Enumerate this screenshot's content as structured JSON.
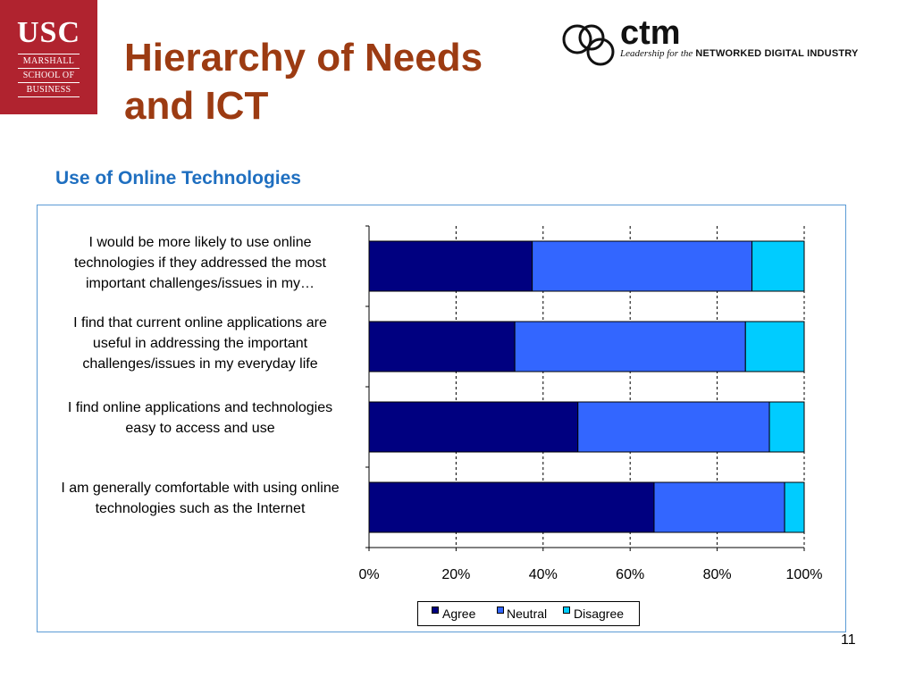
{
  "slide": {
    "title_line1": "Hierarchy of Needs",
    "title_line2": "and ICT",
    "subtitle": "Use of Online Technologies",
    "page_number": "11"
  },
  "usc_logo": {
    "big": "USC",
    "line1": "MARSHALL",
    "line2": "SCHOOL OF",
    "line3": "BUSINESS"
  },
  "ctm_logo": {
    "word": "ctm",
    "tag_lead": "Leadership for the",
    "tag_net": "NETWORKED DIGITAL INDUSTRY"
  },
  "colors": {
    "agree": "#000080",
    "neutral": "#3366ff",
    "disagree": "#00ccff",
    "title": "#9c3b12",
    "subtitle": "#1f6fc0",
    "usc_red": "#b0232f"
  },
  "chart_data": {
    "type": "bar",
    "orientation": "horizontal",
    "stacked": true,
    "percent": true,
    "categories": [
      "I would be more likely to use online technologies if they addressed the most important challenges/issues in my…",
      "I find that current online applications are useful in addressing the important challenges/issues in my everyday life",
      "I find online applications and technologies easy to access and use",
      "I am generally comfortable with using online technologies such as the Internet"
    ],
    "category_lines": [
      [
        "I would be more likely to use online",
        "technologies if they addressed the most",
        "important challenges/issues in my…"
      ],
      [
        "I find that current online applications are",
        "useful in addressing the important",
        "challenges/issues in my everyday life"
      ],
      [
        "I find online applications and technologies",
        "easy to access and use"
      ],
      [
        "I am generally comfortable with using online",
        "technologies such as the Internet"
      ]
    ],
    "series": [
      {
        "name": "Agree",
        "values": [
          37.5,
          33.5,
          48,
          65.5
        ]
      },
      {
        "name": "Neutral",
        "values": [
          50.5,
          53,
          44,
          30
        ]
      },
      {
        "name": "Disagree",
        "values": [
          12,
          13.5,
          8,
          4.5
        ]
      }
    ],
    "xlim": [
      0,
      100
    ],
    "x_ticks": [
      "0%",
      "20%",
      "40%",
      "60%",
      "80%",
      "100%"
    ],
    "gridlines": "vertical dashed",
    "legend_position": "bottom"
  }
}
